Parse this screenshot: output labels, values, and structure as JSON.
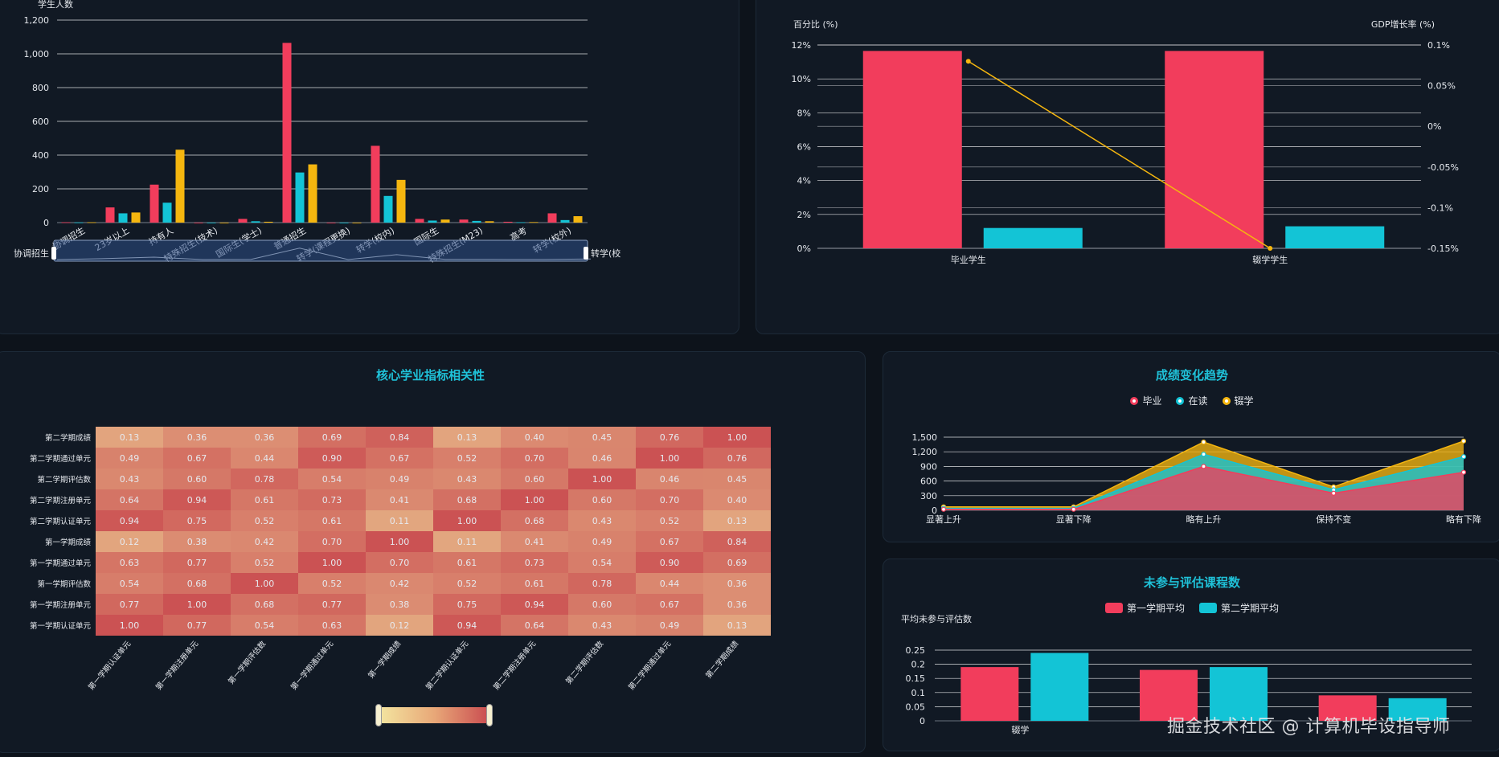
{
  "panel_tl": {
    "chart_data": {
      "type": "bar",
      "ylabel": "学生人数",
      "yticks": [
        "0",
        "200",
        "400",
        "600",
        "800",
        "1,000",
        "1,200"
      ],
      "ymax": 1200,
      "categories": [
        "协调招生",
        "23岁以上",
        "持有人",
        "特殊招生(技术)",
        "国际生(学士)",
        "普通招生",
        "转学(课程更换)",
        "转学(校内)",
        "国际生",
        "特殊招生(M23)",
        "高考",
        "转学(校外)"
      ],
      "series": [
        {
          "color": "#f23d5c",
          "values": [
            2,
            90,
            225,
            0,
            22,
            1065,
            0,
            455,
            22,
            18,
            5,
            55
          ]
        },
        {
          "color": "#13c4d6",
          "values": [
            1,
            55,
            118,
            0,
            8,
            297,
            0,
            158,
            12,
            10,
            2,
            15
          ]
        },
        {
          "color": "#f5b60f",
          "values": [
            2,
            60,
            432,
            0,
            5,
            345,
            0,
            253,
            18,
            8,
            3,
            38
          ]
        }
      ],
      "zoom_left_label": "协调招生",
      "zoom_right_label": "转学(校"
    }
  },
  "panel_tr": {
    "chart_data": {
      "type": "bar",
      "ylabel_left": "百分比 (%)",
      "ylabel_right": "GDP增长率 (%)",
      "yticks_left": [
        "0%",
        "2%",
        "4%",
        "6%",
        "8%",
        "10%",
        "12%"
      ],
      "yticks_right": [
        "-0.15%",
        "-0.1%",
        "-0.05%",
        "0%",
        "0.05%",
        "0.1%"
      ],
      "categories": [
        "毕业学生",
        "辍学学生"
      ],
      "series": [
        {
          "color": "#f23d5c",
          "values": [
            11.65,
            11.65
          ]
        },
        {
          "color": "#13c4d6",
          "values": [
            1.2,
            1.3
          ]
        }
      ],
      "line": {
        "color": "#f5b60f",
        "values": [
          0.08,
          -0.15
        ]
      }
    }
  },
  "panel_heat": {
    "title": "核心学业指标相关性",
    "chart_data": {
      "type": "heatmap",
      "rows": [
        "第二学期成绩",
        "第二学期通过单元",
        "第二学期评估数",
        "第二学期注册单元",
        "第二学期认证单元",
        "第一学期成绩",
        "第一学期通过单元",
        "第一学期评估数",
        "第一学期注册单元",
        "第一学期认证单元"
      ],
      "cols": [
        "第一学期认证单元",
        "第一学期注册单元",
        "第一学期评估数",
        "第一学期通过单元",
        "第一学期成绩",
        "第二学期认证单元",
        "第二学期注册单元",
        "第二学期评估数",
        "第二学期通过单元",
        "第二学期成绩"
      ],
      "values": [
        [
          "0.13",
          "0.36",
          "0.36",
          "0.69",
          "0.84",
          "0.13",
          "0.40",
          "0.45",
          "0.76",
          "1.00"
        ],
        [
          "0.49",
          "0.67",
          "0.44",
          "0.90",
          "0.67",
          "0.52",
          "0.70",
          "0.46",
          "1.00",
          "0.76"
        ],
        [
          "0.43",
          "0.60",
          "0.78",
          "0.54",
          "0.49",
          "0.43",
          "0.60",
          "1.00",
          "0.46",
          "0.45"
        ],
        [
          "0.64",
          "0.94",
          "0.61",
          "0.73",
          "0.41",
          "0.68",
          "1.00",
          "0.60",
          "0.70",
          "0.40"
        ],
        [
          "0.94",
          "0.75",
          "0.52",
          "0.61",
          "0.11",
          "1.00",
          "0.68",
          "0.43",
          "0.52",
          "0.13"
        ],
        [
          "0.12",
          "0.38",
          "0.42",
          "0.70",
          "1.00",
          "0.11",
          "0.41",
          "0.49",
          "0.67",
          "0.84"
        ],
        [
          "0.63",
          "0.77",
          "0.52",
          "1.00",
          "0.70",
          "0.61",
          "0.73",
          "0.54",
          "0.90",
          "0.69"
        ],
        [
          "0.54",
          "0.68",
          "1.00",
          "0.52",
          "0.42",
          "0.52",
          "0.61",
          "0.78",
          "0.44",
          "0.36"
        ],
        [
          "0.77",
          "1.00",
          "0.68",
          "0.77",
          "0.38",
          "0.75",
          "0.94",
          "0.60",
          "0.67",
          "0.36"
        ],
        [
          "1.00",
          "0.77",
          "0.54",
          "0.63",
          "0.12",
          "0.94",
          "0.64",
          "0.43",
          "0.49",
          "0.13"
        ]
      ],
      "color_low": "#f4e7a1",
      "color_high": "#c94a4f"
    }
  },
  "panel_trend": {
    "title": "成绩变化趋势",
    "chart_data": {
      "type": "area",
      "categories": [
        "显著上升",
        "显著下降",
        "略有上升",
        "保持不变",
        "略有下降"
      ],
      "yticks": [
        "0",
        "300",
        "600",
        "900",
        "1,200",
        "1,500"
      ],
      "ymax": 1500,
      "series": [
        {
          "name": "毕业",
          "color": "#f23d5c",
          "values": [
            20,
            20,
            900,
            350,
            780
          ]
        },
        {
          "name": "在读",
          "color": "#13c4d6",
          "values": [
            40,
            40,
            1150,
            420,
            1100
          ]
        },
        {
          "name": "辍学",
          "color": "#f5b60f",
          "values": [
            70,
            70,
            1400,
            480,
            1420
          ]
        }
      ]
    }
  },
  "panel_absent": {
    "title": "未参与评估课程数",
    "chart_data": {
      "type": "bar",
      "ylabel": "平均未参与评估数",
      "yticks": [
        "0",
        "0.05",
        "0.1",
        "0.15",
        "0.2",
        "0.25"
      ],
      "ymax": 0.25,
      "categories": [
        "辍学",
        "",
        ""
      ],
      "series": [
        {
          "name": "第一学期平均",
          "color": "#f23d5c",
          "values": [
            0.19,
            0.18,
            0.09
          ]
        },
        {
          "name": "第二学期平均",
          "color": "#13c4d6",
          "values": [
            0.24,
            0.19,
            0.08
          ]
        }
      ]
    }
  },
  "watermark": "掘金技术社区 @ 计算机毕设指导师"
}
